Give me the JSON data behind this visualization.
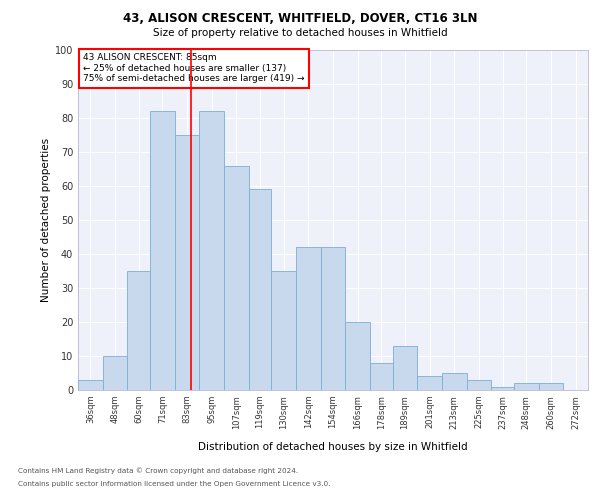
{
  "title1": "43, ALISON CRESCENT, WHITFIELD, DOVER, CT16 3LN",
  "title2": "Size of property relative to detached houses in Whitfield",
  "xlabel": "Distribution of detached houses by size in Whitfield",
  "ylabel": "Number of detached properties",
  "footnote1": "Contains HM Land Registry data © Crown copyright and database right 2024.",
  "footnote2": "Contains public sector information licensed under the Open Government Licence v3.0.",
  "annotation_title": "43 ALISON CRESCENT: 85sqm",
  "annotation_line1": "← 25% of detached houses are smaller (137)",
  "annotation_line2": "75% of semi-detached houses are larger (419) →",
  "bar_color": "#c8d9ee",
  "bar_edge_color": "#7bafd4",
  "vline_color": "red",
  "vline_x": 85,
  "categories": [
    "36sqm",
    "48sqm",
    "60sqm",
    "71sqm",
    "83sqm",
    "95sqm",
    "107sqm",
    "119sqm",
    "130sqm",
    "142sqm",
    "154sqm",
    "166sqm",
    "178sqm",
    "189sqm",
    "201sqm",
    "213sqm",
    "225sqm",
    "237sqm",
    "248sqm",
    "260sqm",
    "272sqm"
  ],
  "bin_edges": [
    30,
    42,
    54,
    65,
    77,
    89,
    101,
    113,
    124,
    136,
    148,
    160,
    172,
    183,
    195,
    207,
    219,
    231,
    242,
    254,
    266,
    278
  ],
  "values": [
    3,
    10,
    35,
    82,
    75,
    82,
    66,
    59,
    35,
    42,
    42,
    20,
    8,
    13,
    4,
    5,
    3,
    1,
    2,
    2,
    0
  ],
  "ylim": [
    0,
    100
  ],
  "yticks": [
    0,
    10,
    20,
    30,
    40,
    50,
    60,
    70,
    80,
    90,
    100
  ],
  "plot_bg_color": "#eef1fa"
}
